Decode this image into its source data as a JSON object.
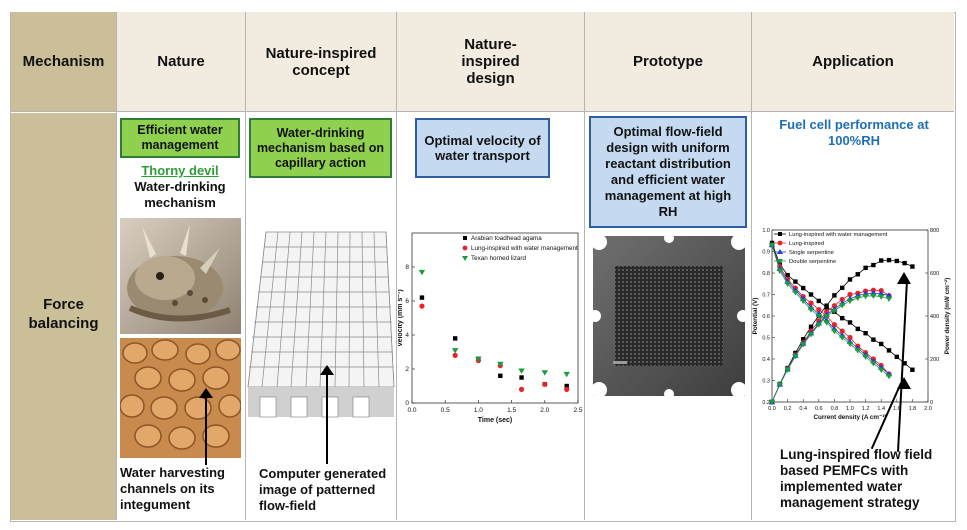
{
  "header": {
    "mechanism": "Mechanism",
    "nature": "Nature",
    "concept": "Nature-inspired concept",
    "design": "Nature-inspired design",
    "prototype": "Prototype",
    "application": "Application"
  },
  "row": {
    "label": "Force balancing"
  },
  "nature_col": {
    "box": "Efficient water management",
    "link": "Thorny devil",
    "subtitle": "Water-drinking mechanism",
    "caption": "Water harvesting channels on its integument"
  },
  "concept_col": {
    "box": "Water-drinking mechanism based on capillary action",
    "caption": "Computer generated image of patterned flow-field"
  },
  "design_col": {
    "box": "Optimal velocity of water transport"
  },
  "prototype_col": {
    "box": "Optimal flow-field design with uniform reactant distribution and efficient water management at high RH"
  },
  "application_col": {
    "title": "Fuel cell performance at 100%RH",
    "caption": "Lung-inspired flow field based PEMFCs with implemented water management strategy"
  },
  "colors": {
    "header_bg": "#f1ecdf",
    "mechanism_bg": "#cbbf9a",
    "green_box": "#8fd14f",
    "blue_box": "#c5d9f0",
    "title_blue": "#1f6fb5",
    "link_green": "#2e9e3a"
  },
  "chart_data": [
    {
      "type": "scatter",
      "xlabel": "Time (sec)",
      "ylabel": "Velocity (mm s⁻¹)",
      "xlim": [
        0,
        2.5
      ],
      "ylim": [
        0,
        10
      ],
      "xticks": [
        "0.0",
        "0.5",
        "1.0",
        "1.5",
        "2.0",
        "2.5"
      ],
      "yticks": [
        "0",
        "2",
        "4",
        "6",
        "8"
      ],
      "legend_position": "top-right",
      "series": [
        {
          "name": "Arabian toadhead agama",
          "color": "#000000",
          "marker": "square",
          "x": [
            0.15,
            0.65,
            1.0,
            1.33,
            1.65,
            2.0,
            2.33
          ],
          "y": [
            6.2,
            3.8,
            2.6,
            1.6,
            1.5,
            1.1,
            1.0
          ]
        },
        {
          "name": "Lung-inspired with water management",
          "color": "#e8232a",
          "marker": "circle",
          "x": [
            0.15,
            0.65,
            1.0,
            1.33,
            1.65,
            2.0,
            2.33
          ],
          "y": [
            5.7,
            2.8,
            2.5,
            2.2,
            0.8,
            1.1,
            0.8
          ]
        },
        {
          "name": "Texan horned lizard",
          "color": "#1a9c3c",
          "marker": "triangle-down",
          "x": [
            0.15,
            0.65,
            1.0,
            1.33,
            1.65,
            2.0,
            2.33
          ],
          "y": [
            7.7,
            3.1,
            2.6,
            2.3,
            1.9,
            1.8,
            1.7
          ]
        }
      ]
    },
    {
      "type": "line",
      "xlabel": "Current density (A cm⁻²)",
      "ylabel": "Potential (V)",
      "y2label": "Power density (mW cm⁻²)",
      "xlim": [
        0,
        2.0
      ],
      "ylim": [
        0.2,
        1.0
      ],
      "y2lim": [
        0,
        800
      ],
      "xticks": [
        "0.0",
        "0.2",
        "0.4",
        "0.6",
        "0.8",
        "1.0",
        "1.2",
        "1.4",
        "1.6",
        "1.8",
        "2.0"
      ],
      "yticks": [
        "0.2",
        "0.3",
        "0.4",
        "0.5",
        "0.6",
        "0.7",
        "0.8",
        "0.9",
        "1.0"
      ],
      "y2ticks": [
        "0",
        "200",
        "400",
        "600",
        "800"
      ],
      "legend_position": "top-left",
      "series": [
        {
          "name": "Lung-inspired with water management",
          "color": "#000000",
          "marker": "square",
          "x": [
            0.0,
            0.1,
            0.2,
            0.3,
            0.4,
            0.5,
            0.6,
            0.7,
            0.8,
            0.9,
            1.0,
            1.1,
            1.2,
            1.3,
            1.4,
            1.5,
            1.6,
            1.7,
            1.8
          ],
          "potential": [
            0.94,
            0.84,
            0.79,
            0.76,
            0.73,
            0.7,
            0.67,
            0.64,
            0.62,
            0.59,
            0.57,
            0.54,
            0.52,
            0.49,
            0.47,
            0.44,
            0.41,
            0.38,
            0.35
          ],
          "power": [
            0,
            84,
            158,
            228,
            292,
            350,
            402,
            448,
            496,
            531,
            570,
            594,
            624,
            637,
            658,
            660,
            656,
            646,
            630
          ]
        },
        {
          "name": "Lung-inspired",
          "color": "#e8232a",
          "marker": "circle",
          "x": [
            0.0,
            0.1,
            0.2,
            0.3,
            0.4,
            0.5,
            0.6,
            0.7,
            0.8,
            0.9,
            1.0,
            1.1,
            1.2,
            1.3,
            1.4,
            1.5
          ],
          "potential": [
            0.93,
            0.83,
            0.77,
            0.73,
            0.69,
            0.66,
            0.63,
            0.6,
            0.56,
            0.53,
            0.5,
            0.46,
            0.43,
            0.4,
            0.37,
            0.33
          ],
          "power": [
            0,
            83,
            154,
            219,
            276,
            330,
            378,
            420,
            448,
            477,
            500,
            506,
            516,
            520,
            518,
            495
          ]
        },
        {
          "name": "Single serpentine",
          "color": "#1f3fd8",
          "marker": "triangle-up",
          "x": [
            0.0,
            0.1,
            0.2,
            0.3,
            0.4,
            0.5,
            0.6,
            0.7,
            0.8,
            0.9,
            1.0,
            1.1,
            1.2,
            1.3,
            1.4,
            1.5
          ],
          "potential": [
            0.93,
            0.82,
            0.76,
            0.72,
            0.68,
            0.64,
            0.61,
            0.58,
            0.54,
            0.51,
            0.48,
            0.45,
            0.42,
            0.39,
            0.36,
            0.33
          ],
          "power": [
            0,
            82,
            152,
            216,
            272,
            320,
            366,
            406,
            432,
            459,
            480,
            495,
            504,
            507,
            504,
            495
          ]
        },
        {
          "name": "Double serpentine",
          "color": "#1a9c3c",
          "marker": "triangle-down",
          "x": [
            0.0,
            0.1,
            0.2,
            0.3,
            0.4,
            0.5,
            0.6,
            0.7,
            0.8,
            0.9,
            1.0,
            1.1,
            1.2,
            1.3,
            1.4,
            1.5
          ],
          "potential": [
            0.93,
            0.81,
            0.75,
            0.71,
            0.67,
            0.63,
            0.6,
            0.57,
            0.53,
            0.5,
            0.47,
            0.44,
            0.41,
            0.38,
            0.35,
            0.32
          ],
          "power": [
            0,
            81,
            150,
            213,
            268,
            315,
            360,
            399,
            424,
            450,
            470,
            484,
            492,
            494,
            490,
            480
          ]
        }
      ]
    }
  ]
}
